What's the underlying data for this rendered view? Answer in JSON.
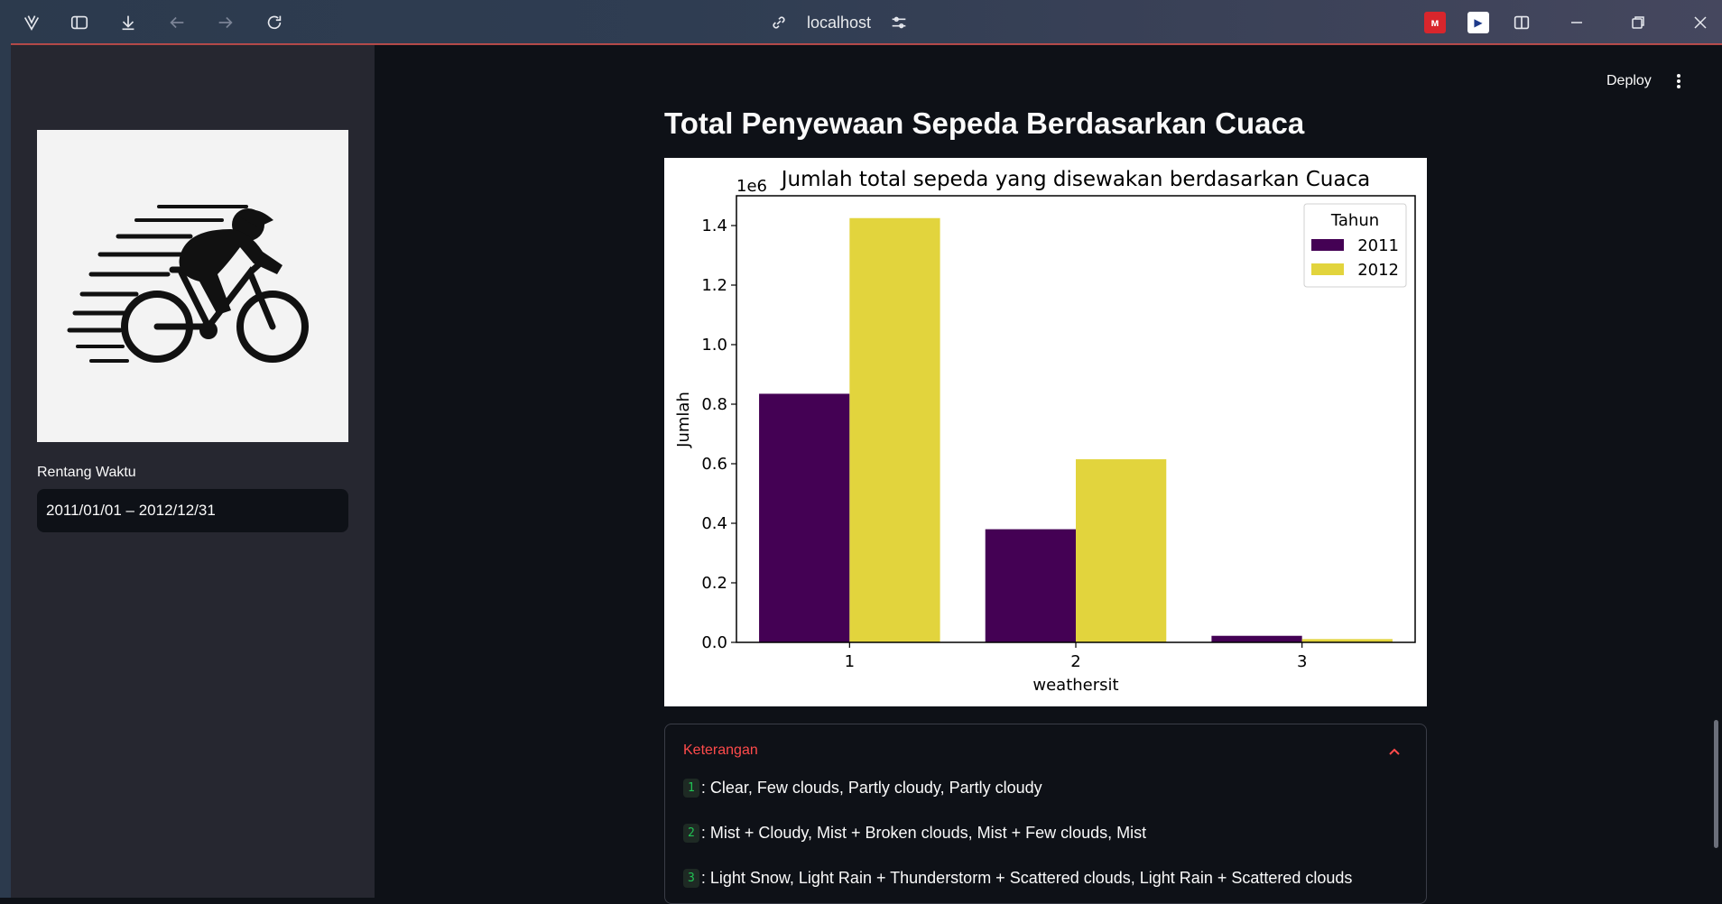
{
  "browser": {
    "url": "localhost",
    "icons": [
      "app-logo-icon",
      "sidebar-toggle-icon",
      "download-icon",
      "back-icon",
      "forward-icon",
      "reload-icon",
      "link-icon",
      "site-settings-icon",
      "split-view-icon",
      "minimize-icon",
      "restore-icon",
      "close-icon"
    ]
  },
  "header": {
    "deploy_label": "Deploy"
  },
  "sidebar": {
    "date_label": "Rentang Waktu",
    "date_value": "2011/01/01 – 2012/12/31"
  },
  "main": {
    "title": "Total Penyewaan Sepeda Berdasarkan Cuaca",
    "expander": {
      "title": "Keterangan",
      "items": [
        {
          "code": "1",
          "text": ": Clear, Few clouds, Partly cloudy, Partly cloudy"
        },
        {
          "code": "2",
          "text": ": Mist + Cloudy, Mist + Broken clouds, Mist + Few clouds, Mist"
        },
        {
          "code": "3",
          "text": ": Light Snow, Light Rain + Thunderstorm + Scattered clouds, Light Rain + Scattered clouds"
        }
      ]
    }
  },
  "chart_data": {
    "type": "bar",
    "title": "Jumlah total sepeda yang disewakan berdasarkan Cuaca",
    "xlabel": "weathersit",
    "ylabel": "Jumlah",
    "offset_text": "1e6",
    "categories": [
      "1",
      "2",
      "3"
    ],
    "ylim": [
      0,
      1.5
    ],
    "yticks": [
      "0.0",
      "0.2",
      "0.4",
      "0.6",
      "0.8",
      "1.0",
      "1.2",
      "1.4"
    ],
    "legend_title": "Tahun",
    "legend_position": "top-right",
    "series": [
      {
        "name": "2011",
        "color": "#440154",
        "values": [
          0.835,
          0.38,
          0.022
        ]
      },
      {
        "name": "2012",
        "color": "#e2d43d",
        "values": [
          1.425,
          0.615,
          0.011
        ]
      }
    ]
  }
}
